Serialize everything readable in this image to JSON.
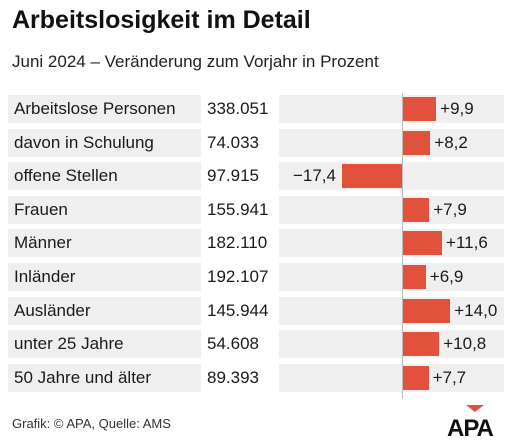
{
  "header": {
    "title": "Arbeitslosigkeit im Detail",
    "subtitle": "Juni 2024 – Veränderung zum Vorjahr in Prozent"
  },
  "footer": {
    "source": "Grafik: © APA, Quelle: AMS",
    "logo_text": "APA"
  },
  "chart_data": {
    "type": "bar",
    "orientation": "horizontal",
    "title": "Arbeitslosigkeit im Detail",
    "subtitle": "Juni 2024 – Veränderung zum Vorjahr in Prozent",
    "categories": [
      "Arbeitslose Personen",
      "davon in Schulung",
      "offene Stellen",
      "Frauen",
      "Männer",
      "Inländer",
      "Ausländer",
      "unter 25 Jahre",
      "50 Jahre und älter"
    ],
    "absolute_values": [
      "338.051",
      "74.033",
      "97.915",
      "155.941",
      "182.110",
      "192.107",
      "145.944",
      "54.608",
      "89.393"
    ],
    "values": [
      9.9,
      8.2,
      -17.4,
      7.9,
      11.6,
      6.9,
      14.0,
      10.8,
      7.7
    ],
    "value_labels": [
      "+9,9",
      "+8,2",
      "−17,4",
      "+7,9",
      "+11,6",
      "+6,9",
      "+14,0",
      "+10,8",
      "+7,7"
    ],
    "colors": {
      "bar": "#e2513b",
      "row_background": "#efefef"
    },
    "xlim": [
      -17.4,
      14.0
    ],
    "grid": false
  }
}
